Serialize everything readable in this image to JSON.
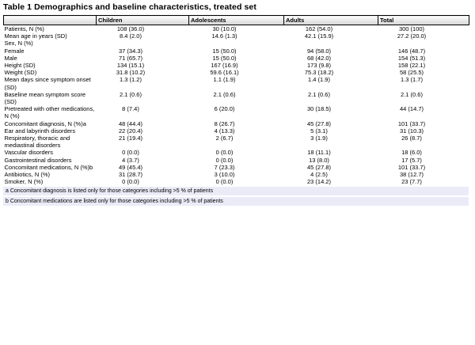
{
  "title": "Table 1 Demographics and baseline characteristics, treated set",
  "table": {
    "columns": [
      "",
      "Children",
      "Adolescents",
      "Adults",
      "Total"
    ],
    "rows": [
      {
        "label": "Patients, N (%)",
        "values": [
          "108 (36.0)",
          "30 (10.0)",
          "162 (54.0)",
          "300 (100)"
        ]
      },
      {
        "label": "Mean age in years (SD)",
        "values": [
          "8.4 (2.0)",
          "14.6 (1.3)",
          "42.1 (15.9)",
          "27.2 (20.0)"
        ]
      },
      {
        "label": "Sex, N (%)",
        "values": [
          "",
          "",
          "",
          ""
        ]
      },
      {
        "label": "Female",
        "values": [
          "37 (34.3)",
          "15 (50.0)",
          "94 (58.0)",
          "146 (48.7)"
        ]
      },
      {
        "label": "Male",
        "values": [
          "71 (65.7)",
          "15 (50.0)",
          "68 (42.0)",
          "154 (51.3)"
        ]
      },
      {
        "label": "Height (SD)",
        "values": [
          "134 (15.1)",
          "167 (16.9)",
          "173 (9.8)",
          "158 (22.1)"
        ]
      },
      {
        "label": "Weight (SD)",
        "values": [
          "31.8 (10.2)",
          "59.6 (16.1)",
          "75.3 (18.2)",
          "58 (25.5)"
        ]
      },
      {
        "label": "Mean days since symptom onset\n(SD)",
        "values": [
          "1.3 (1.2)",
          "1.1 (1.9)",
          "1.4 (1.9)",
          "1.3 (1.7)"
        ]
      },
      {
        "label": "Baseline mean symptom score\n(SD)",
        "values": [
          "2.1 (0.6)",
          "2.1 (0.6)",
          "2.1 (0.6)",
          "2.1 (0.6)"
        ]
      },
      {
        "label": "Pretreated with other medications,\nN (%)",
        "values": [
          "8 (7.4)",
          "6 (20.0)",
          "30 (18.5)",
          "44 (14.7)"
        ]
      },
      {
        "label": "Concomitant diagnosis, N (%)a",
        "values": [
          "48 (44.4)",
          "8 (26.7)",
          "45 (27.8)",
          "101 (33.7)"
        ]
      },
      {
        "label": "Ear and labyrinth disorders",
        "values": [
          "22 (20.4)",
          "4 (13.3)",
          "5 (3.1)",
          "31 (10.3)"
        ]
      },
      {
        "label": "Respiratory, thoracic and\nmediastinal disorders",
        "values": [
          "21 (19.4)",
          "2 (6.7)",
          "3 (1.9)",
          "26 (8.7)"
        ]
      },
      {
        "label": "Vascular disorders",
        "values": [
          "0 (0.0)",
          "0 (0.0)",
          "18 (11.1)",
          "18 (6.0)"
        ]
      },
      {
        "label": "Gastrointestinal disorders",
        "values": [
          "4 (3.7)",
          "0 (0.0)",
          "13 (8.0)",
          "17 (5.7)"
        ]
      },
      {
        "label": "Concomitant medications, N (%)b",
        "values": [
          "49 (45.4)",
          "7 (23.3)",
          "45 (27.8)",
          "101 (33.7)"
        ]
      },
      {
        "label": "Antibiotics, N (%)",
        "values": [
          "31 (28.7)",
          "3 (10.0)",
          "4 (2.5)",
          "38 (12.7)"
        ]
      },
      {
        "label": "Smoker, N (%)",
        "values": [
          "0 (0.0)",
          "0 (0.0)",
          "23 (14.2)",
          "23 (7.7)"
        ]
      }
    ],
    "footnotes": [
      "a Concomitant diagnosis is listed only for those categories including >5 % of patients",
      "b Concomitant medications are listed only for those categories including >5 % of patients"
    ]
  },
  "colors": {
    "footnote_background": "#ebebf8",
    "header_border": "#000000",
    "header_fill": "#d6d6d6"
  }
}
